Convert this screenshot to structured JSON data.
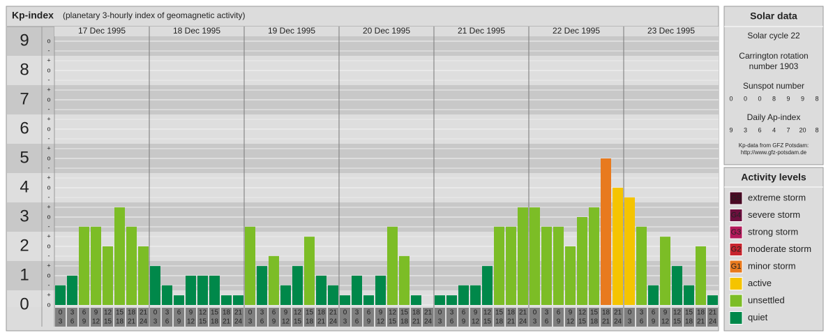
{
  "header": {
    "title": "Kp-index",
    "subtitle": "(planetary 3-hourly index of geomagnetic activity)"
  },
  "chart_data": {
    "type": "bar",
    "days": [
      "17 Dec 1995",
      "18 Dec 1995",
      "19 Dec 1995",
      "20 Dec 1995",
      "21 Dec 1995",
      "22 Dec 1995",
      "23 Dec 1995"
    ],
    "hours_start": [
      "0",
      "3",
      "6",
      "9",
      "12",
      "15",
      "18",
      "21"
    ],
    "hours_end": [
      "3",
      "6",
      "9",
      "12",
      "15",
      "18",
      "21",
      "24"
    ],
    "values": [
      0.67,
      1,
      2.67,
      2.67,
      2,
      3.33,
      2.67,
      2,
      1.33,
      0.67,
      0.33,
      1,
      1,
      1,
      0.33,
      0.33,
      2.67,
      1.33,
      1.67,
      0.67,
      1.33,
      2.33,
      1,
      0.67,
      0.33,
      1,
      0.33,
      1,
      2.67,
      1.67,
      0.33,
      0,
      0.33,
      0.33,
      0.67,
      0.67,
      1.33,
      2.67,
      2.67,
      3.33,
      3.33,
      2.67,
      2.67,
      2,
      3,
      3.33,
      5,
      4,
      3.67,
      2.67,
      0.67,
      2.33,
      1.33,
      0.67,
      2,
      0.33
    ],
    "colors": [
      "#00884a",
      "#00884a",
      "#7cbd26",
      "#7cbd26",
      "#7cbd26",
      "#7cbd26",
      "#7cbd26",
      "#7cbd26",
      "#00884a",
      "#00884a",
      "#00884a",
      "#00884a",
      "#00884a",
      "#00884a",
      "#00884a",
      "#00884a",
      "#7cbd26",
      "#00884a",
      "#7cbd26",
      "#00884a",
      "#00884a",
      "#7cbd26",
      "#00884a",
      "#00884a",
      "#00884a",
      "#00884a",
      "#00884a",
      "#00884a",
      "#7cbd26",
      "#7cbd26",
      "#00884a",
      "#00884a",
      "#00884a",
      "#00884a",
      "#00884a",
      "#00884a",
      "#00884a",
      "#7cbd26",
      "#7cbd26",
      "#7cbd26",
      "#7cbd26",
      "#7cbd26",
      "#7cbd26",
      "#7cbd26",
      "#7cbd26",
      "#7cbd26",
      "#e87a1e",
      "#f5c400",
      "#f5c400",
      "#7cbd26",
      "#00884a",
      "#7cbd26",
      "#00884a",
      "#00884a",
      "#7cbd26",
      "#00884a"
    ],
    "ylim": [
      0,
      9
    ],
    "yticks": [
      0,
      1,
      2,
      3,
      4,
      5,
      6,
      7,
      8,
      9
    ],
    "subtick_labels": [
      "-",
      "o",
      "+"
    ]
  },
  "solar": {
    "title": "Solar data",
    "cycle": "Solar cycle 22",
    "carrington": [
      "Carrington rotation",
      "number 1903"
    ],
    "sunspot_title": "Sunspot number",
    "sunspot": [
      0,
      0,
      0,
      8,
      9,
      9,
      8
    ],
    "ap_title": "Daily Ap-index",
    "ap": [
      9,
      3,
      6,
      4,
      7,
      20,
      8
    ],
    "source": [
      "Kp-data from GFZ Potsdam:",
      "http://www.gfz-potsdam.de"
    ]
  },
  "levels": {
    "title": "Activity levels",
    "items": [
      {
        "code": "G5",
        "name": "extreme storm",
        "color": "#4a0a24"
      },
      {
        "code": "G4",
        "name": "severe storm",
        "color": "#6e0f3f"
      },
      {
        "code": "G3",
        "name": "strong storm",
        "color": "#b3185a"
      },
      {
        "code": "G2",
        "name": "moderate storm",
        "color": "#c8242e"
      },
      {
        "code": "G1",
        "name": "minor storm",
        "color": "#e87a1e"
      },
      {
        "name": "active",
        "color": "#f5c400"
      },
      {
        "name": "unsettled",
        "color": "#7cbd26"
      },
      {
        "name": "quiet",
        "color": "#00884a"
      }
    ]
  }
}
